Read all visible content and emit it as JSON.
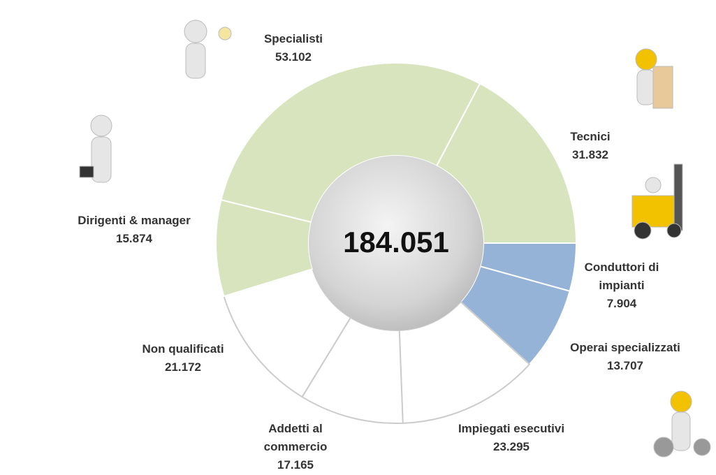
{
  "chart_data": {
    "type": "donut",
    "categories": [
      "Conduttori di impianti",
      "Operai specializzati",
      "Impiegati esecutivi",
      "Addetti al commercio",
      "Non qualificati",
      "Dirigenti & manager",
      "Specialisti",
      "Tecnici"
    ],
    "values": [
      7904,
      13707,
      23295,
      17165,
      21172,
      15874,
      53102,
      31832
    ],
    "value_labels": [
      "7.904",
      "13.707",
      "23.295",
      "17.165",
      "21.172",
      "15.874",
      "53.102",
      "31.832"
    ],
    "colors": [
      "#95b3d7",
      "#95b3d7",
      "#ffffff",
      "#ffffff",
      "#ffffff",
      "#d7e4bd",
      "#d7e4bd",
      "#d7e4bd"
    ],
    "total": {
      "value": 184051,
      "label": "184.051"
    }
  }
}
